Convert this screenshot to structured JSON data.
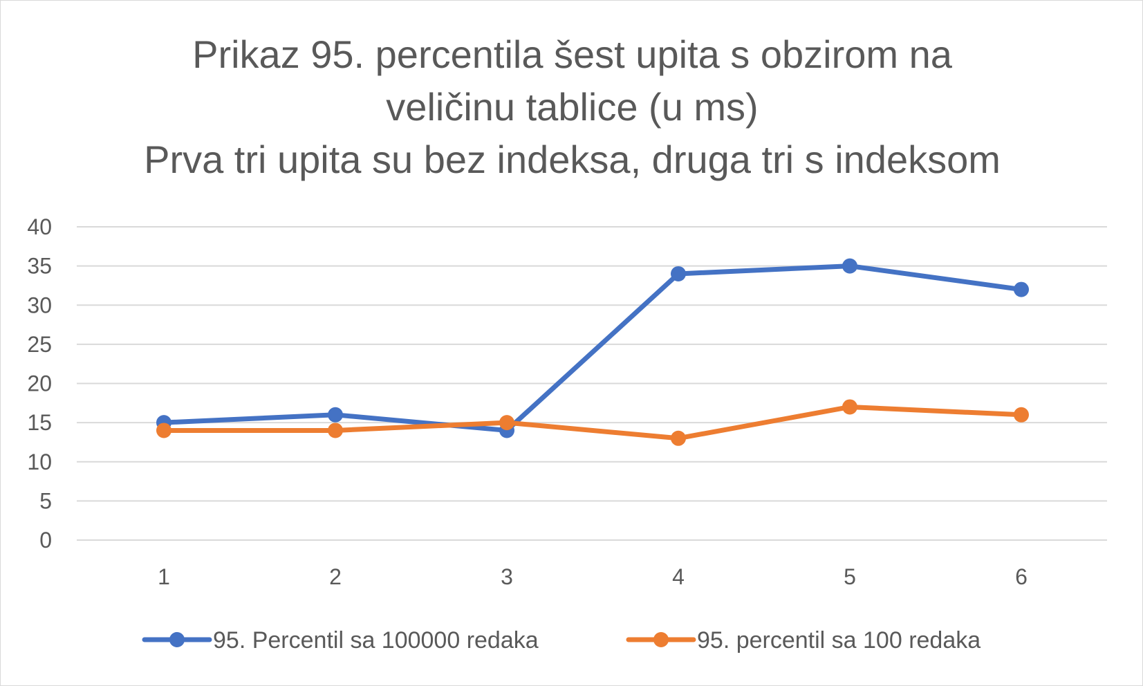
{
  "chart_data": {
    "type": "line",
    "title_lines": [
      "Prikaz 95. percentila šest upita s obzirom na",
      "veličinu tablice (u ms)",
      "Prva tri upita su bez indeksa, druga tri s indeksom"
    ],
    "xlabel": "",
    "ylabel": "",
    "categories": [
      "1",
      "2",
      "3",
      "4",
      "5",
      "6"
    ],
    "ylim": [
      0,
      40
    ],
    "yticks": [
      0,
      5,
      10,
      15,
      20,
      25,
      30,
      35,
      40
    ],
    "grid": true,
    "legend_position": "bottom",
    "series": [
      {
        "name": "95. Percentil sa 100000 redaka",
        "color": "#4472c4",
        "values": [
          15,
          16,
          14,
          34,
          35,
          32
        ]
      },
      {
        "name": "95. percentil sa 100 redaka",
        "color": "#ed7d31",
        "values": [
          14,
          14,
          15,
          13,
          17,
          16
        ]
      }
    ]
  }
}
